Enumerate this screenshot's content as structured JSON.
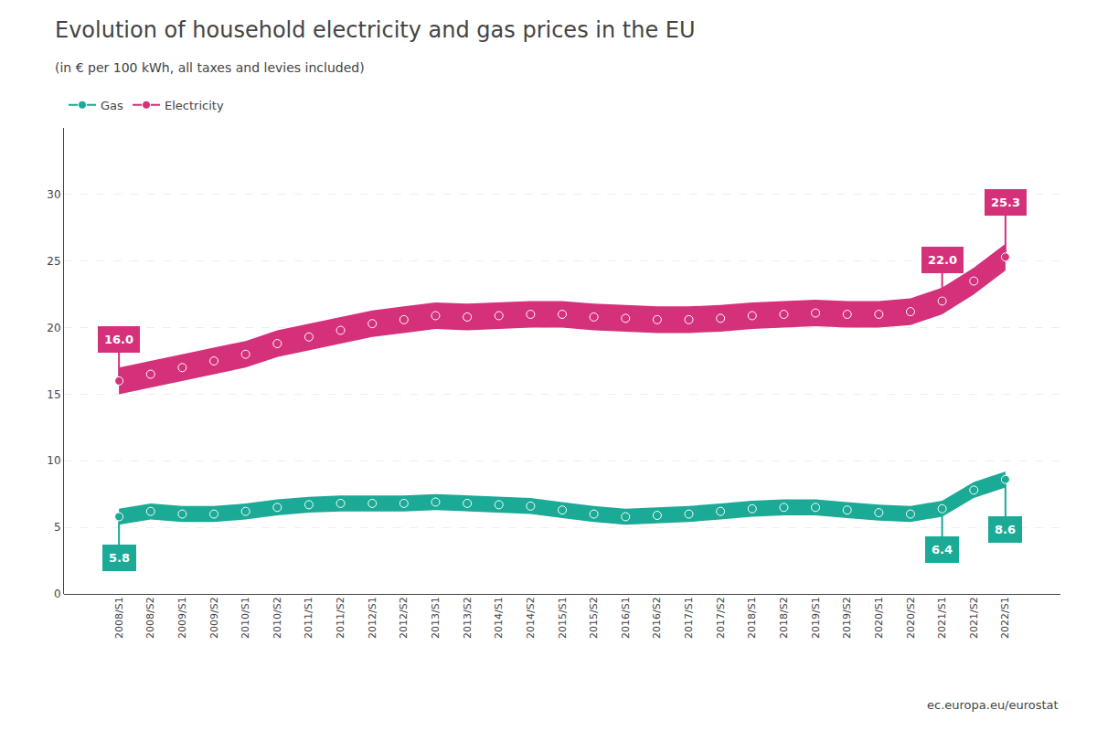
{
  "chart_data": {
    "type": "line",
    "title": "Evolution of household electricity and gas prices in the EU",
    "subtitle": "(in € per 100 kWh, all taxes and levies included)",
    "source": "ec.europa.eu/eurostat",
    "categories": [
      "2008/S1",
      "2008/S2",
      "2009/S1",
      "2009/S2",
      "2010/S1",
      "2010/S2",
      "2011/S1",
      "2011/S2",
      "2012/S1",
      "2012/S2",
      "2013/S1",
      "2013/S2",
      "2014/S1",
      "2014/S2",
      "2015/S1",
      "2015/S2",
      "2016/S1",
      "2016/S2",
      "2017/S1",
      "2017/S2",
      "2018/S1",
      "2018/S2",
      "2019/S1",
      "2019/S2",
      "2020/S1",
      "2020/S2",
      "2021/S1",
      "2021/S2",
      "2022/S1"
    ],
    "series": [
      {
        "name": "Electricity",
        "color": "#d4317a",
        "marker": "circle",
        "values": [
          16.0,
          16.5,
          17.0,
          17.5,
          18.0,
          18.8,
          19.3,
          19.8,
          20.3,
          20.6,
          20.9,
          20.8,
          20.9,
          21.0,
          21.0,
          20.8,
          20.7,
          20.6,
          20.6,
          20.7,
          20.9,
          21.0,
          21.1,
          21.0,
          21.0,
          21.2,
          22.0,
          23.5,
          25.3
        ],
        "band_low": [
          15.0,
          15.5,
          16.0,
          16.5,
          17.0,
          17.8,
          18.3,
          18.8,
          19.3,
          19.6,
          19.9,
          19.8,
          19.9,
          20.0,
          20.0,
          19.8,
          19.7,
          19.6,
          19.6,
          19.7,
          19.9,
          20.0,
          20.1,
          20.0,
          20.0,
          20.2,
          21.0,
          22.5,
          24.3
        ],
        "band_high": [
          17.0,
          17.5,
          18.0,
          18.5,
          19.0,
          19.8,
          20.3,
          20.8,
          21.3,
          21.6,
          21.9,
          21.8,
          21.9,
          22.0,
          22.0,
          21.8,
          21.7,
          21.6,
          21.6,
          21.7,
          21.9,
          22.0,
          22.1,
          22.0,
          22.0,
          22.2,
          23.0,
          24.5,
          26.3
        ]
      },
      {
        "name": "Gas",
        "color": "#1aaa96",
        "marker": "circle",
        "values": [
          5.8,
          6.2,
          6.0,
          6.0,
          6.2,
          6.5,
          6.7,
          6.8,
          6.8,
          6.8,
          6.9,
          6.8,
          6.7,
          6.6,
          6.3,
          6.0,
          5.8,
          5.9,
          6.0,
          6.2,
          6.4,
          6.5,
          6.5,
          6.3,
          6.1,
          6.0,
          6.4,
          7.8,
          8.6
        ],
        "band_low": [
          5.2,
          5.6,
          5.4,
          5.4,
          5.6,
          5.9,
          6.1,
          6.2,
          6.2,
          6.2,
          6.3,
          6.2,
          6.1,
          6.0,
          5.7,
          5.4,
          5.2,
          5.3,
          5.4,
          5.6,
          5.8,
          5.9,
          5.9,
          5.7,
          5.5,
          5.4,
          5.8,
          7.2,
          8.0
        ],
        "band_high": [
          6.4,
          6.8,
          6.6,
          6.6,
          6.8,
          7.1,
          7.3,
          7.4,
          7.4,
          7.4,
          7.5,
          7.4,
          7.3,
          7.2,
          6.9,
          6.6,
          6.4,
          6.5,
          6.6,
          6.8,
          7.0,
          7.1,
          7.1,
          6.9,
          6.7,
          6.6,
          7.0,
          8.4,
          9.2
        ]
      }
    ],
    "annotations": [
      {
        "text": "16.0",
        "category": "2008/S1",
        "series": "Electricity"
      },
      {
        "text": "22.0",
        "category": "2021/S1",
        "series": "Electricity"
      },
      {
        "text": "25.3",
        "category": "2022/S1",
        "series": "Electricity"
      },
      {
        "text": "5.8",
        "category": "2008/S1",
        "series": "Gas"
      },
      {
        "text": "6.4",
        "category": "2021/S1",
        "series": "Gas"
      },
      {
        "text": "8.6",
        "category": "2022/S1",
        "series": "Gas"
      }
    ],
    "ylim": [
      0,
      35
    ],
    "yticks": [
      0,
      5,
      10,
      15,
      20,
      25,
      30
    ],
    "grid": true,
    "legend": "top left"
  }
}
